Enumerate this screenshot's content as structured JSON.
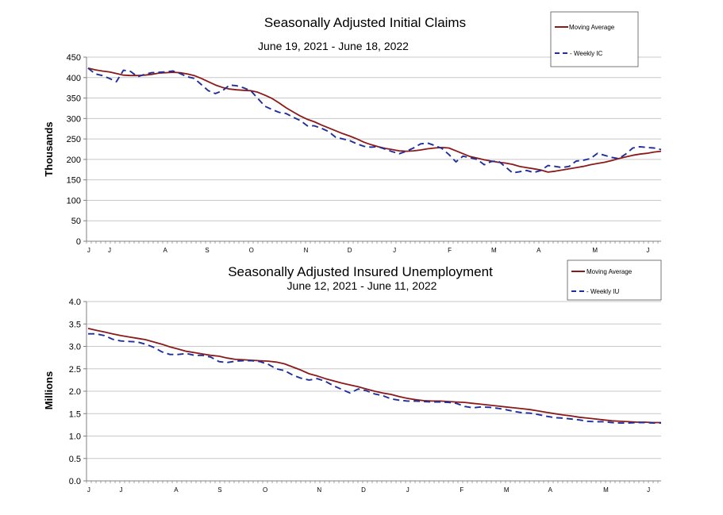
{
  "colors": {
    "moving_average": "#8B1A1A",
    "weekly": "#1F2F9C",
    "grid": "#C8C8C8",
    "axis": "#808080"
  },
  "chart_data": [
    {
      "type": "line",
      "title": "Seasonally Adjusted Initial Claims",
      "subtitle": "June 19, 2021 - June 18, 2022",
      "xlabel": "",
      "ylabel": "Thousands",
      "ylim": [
        0,
        450
      ],
      "yticks": [
        "0",
        "50",
        "100",
        "150",
        "200",
        "250",
        "300",
        "350",
        "400",
        "450"
      ],
      "xticks": [
        "J",
        "J",
        "A",
        "S",
        "O",
        "N",
        "D",
        "J",
        "F",
        "M",
        "A",
        "M",
        "J"
      ],
      "grid": true,
      "legend_position": "top-right",
      "series": [
        {
          "name": "Moving Average",
          "style": "solid",
          "values": [
            423,
            419,
            416,
            414,
            410,
            406,
            405,
            405,
            406,
            408,
            411,
            412,
            413,
            412,
            409,
            405,
            398,
            390,
            382,
            376,
            372,
            370,
            369,
            368,
            364,
            357,
            349,
            338,
            326,
            316,
            306,
            298,
            292,
            284,
            277,
            270,
            263,
            257,
            250,
            242,
            236,
            231,
            227,
            224,
            221,
            220,
            221,
            223,
            226,
            228,
            229,
            228,
            221,
            214,
            207,
            203,
            199,
            196,
            193,
            191,
            188,
            183,
            180,
            177,
            174,
            169,
            171,
            174,
            177,
            180,
            183,
            187,
            190,
            193,
            197,
            202,
            206,
            210,
            213,
            215,
            218,
            220
          ]
        },
        {
          "name": "Weekly IC",
          "style": "dashed",
          "values": [
            423,
            409,
            405,
            398,
            390,
            418,
            415,
            402,
            408,
            412,
            413,
            414,
            416,
            410,
            402,
            398,
            383,
            368,
            361,
            368,
            382,
            380,
            375,
            368,
            349,
            330,
            322,
            315,
            312,
            303,
            295,
            282,
            282,
            276,
            268,
            254,
            250,
            246,
            238,
            232,
            230,
            231,
            225,
            219,
            214,
            220,
            228,
            238,
            240,
            234,
            227,
            212,
            194,
            208,
            204,
            200,
            187,
            195,
            196,
            182,
            167,
            170,
            173,
            168,
            173,
            185,
            183,
            180,
            183,
            196,
            198,
            202,
            215,
            210,
            205,
            202,
            213,
            228,
            231,
            229,
            228,
            224
          ]
        }
      ]
    },
    {
      "type": "line",
      "title": "Seasonally Adjusted Insured Unemployment",
      "subtitle": "June 12, 2021 - June 11, 2022",
      "xlabel": "",
      "ylabel": "Millions",
      "ylim": [
        0,
        4.0
      ],
      "yticks": [
        "0.0",
        "0.5",
        "1.0",
        "1.5",
        "2.0",
        "2.5",
        "3.0",
        "3.5",
        "4.0"
      ],
      "xticks": [
        "J",
        "J",
        "A",
        "S",
        "O",
        "N",
        "D",
        "J",
        "F",
        "M",
        "A",
        "M",
        "J"
      ],
      "grid": true,
      "legend_position": "top-right",
      "series": [
        {
          "name": "Moving Average",
          "style": "solid",
          "values": [
            3.4,
            3.36,
            3.32,
            3.28,
            3.24,
            3.21,
            3.18,
            3.15,
            3.1,
            3.05,
            2.99,
            2.94,
            2.89,
            2.86,
            2.83,
            2.8,
            2.78,
            2.74,
            2.71,
            2.7,
            2.69,
            2.68,
            2.67,
            2.65,
            2.61,
            2.54,
            2.47,
            2.39,
            2.34,
            2.28,
            2.23,
            2.18,
            2.14,
            2.1,
            2.05,
            2.0,
            1.96,
            1.93,
            1.88,
            1.84,
            1.81,
            1.79,
            1.78,
            1.78,
            1.77,
            1.76,
            1.75,
            1.73,
            1.71,
            1.69,
            1.67,
            1.65,
            1.63,
            1.61,
            1.59,
            1.56,
            1.53,
            1.5,
            1.47,
            1.45,
            1.42,
            1.4,
            1.38,
            1.36,
            1.34,
            1.33,
            1.32,
            1.31,
            1.31,
            1.3,
            1.3
          ]
        },
        {
          "name": "Weekly IU",
          "style": "dashed",
          "values": [
            3.28,
            3.28,
            3.24,
            3.16,
            3.12,
            3.11,
            3.1,
            3.05,
            2.98,
            2.88,
            2.82,
            2.82,
            2.84,
            2.8,
            2.8,
            2.76,
            2.66,
            2.64,
            2.67,
            2.68,
            2.68,
            2.66,
            2.6,
            2.5,
            2.46,
            2.36,
            2.29,
            2.25,
            2.28,
            2.22,
            2.12,
            2.04,
            1.96,
            2.05,
            2.01,
            1.94,
            1.9,
            1.83,
            1.8,
            1.78,
            1.78,
            1.77,
            1.76,
            1.76,
            1.75,
            1.73,
            1.66,
            1.63,
            1.65,
            1.64,
            1.62,
            1.59,
            1.55,
            1.52,
            1.51,
            1.48,
            1.44,
            1.41,
            1.4,
            1.38,
            1.36,
            1.33,
            1.32,
            1.32,
            1.3,
            1.29,
            1.29,
            1.3,
            1.3,
            1.29,
            1.29
          ]
        }
      ]
    }
  ]
}
